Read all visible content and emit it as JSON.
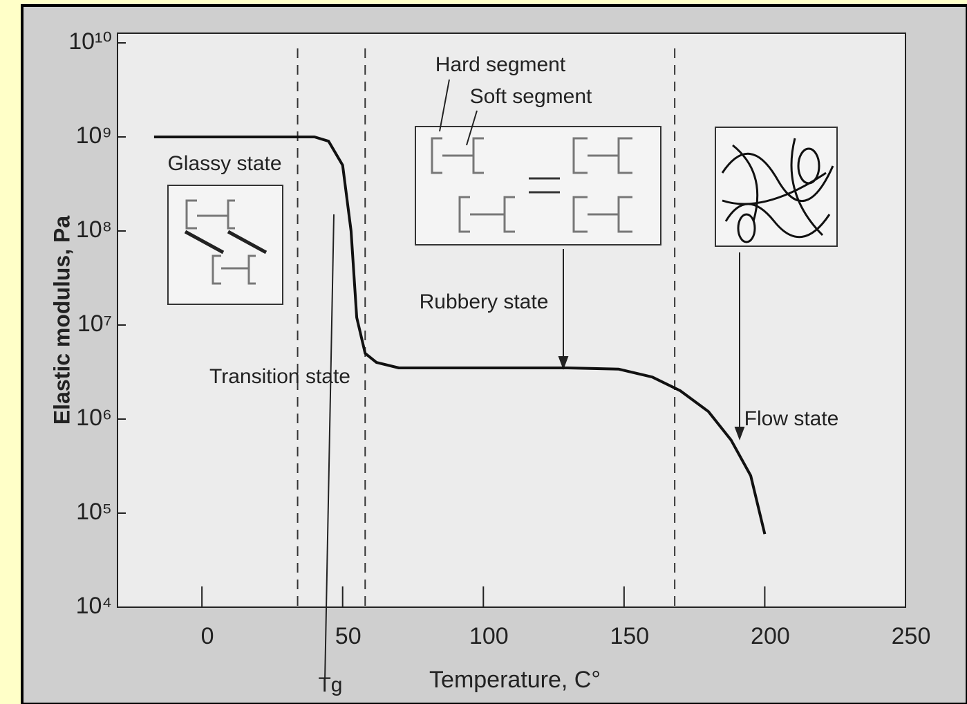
{
  "chart_data": {
    "type": "line",
    "y_label": "Elastic modulus, Pa",
    "x_label": "Temperature, C°",
    "x": [
      -17,
      40,
      45,
      50,
      53,
      55,
      58,
      62,
      70,
      100,
      130,
      148,
      160,
      170,
      180,
      188,
      195,
      200
    ],
    "values": [
      1000000000,
      1000000000,
      900000000,
      500000000,
      100000000,
      12000000,
      5000000,
      4000000,
      3500000,
      3500000,
      3500000,
      3400000,
      2800000,
      2000000,
      1200000,
      600000,
      250000,
      60000
    ],
    "color": "#111111",
    "y_scale": "log",
    "xlim": [
      -30,
      250
    ],
    "ylim": [
      10000,
      10000000000
    ],
    "xticks": [
      0,
      50,
      100,
      150,
      200,
      250
    ],
    "yticks": [
      {
        "value": 10000,
        "label": "10⁴"
      },
      {
        "value": 100000,
        "label": "10⁵"
      },
      {
        "value": 1000000,
        "label": "10⁶"
      },
      {
        "value": 10000000,
        "label": "10⁷"
      },
      {
        "value": 100000000,
        "label": "10⁸"
      },
      {
        "value": 1000000000,
        "label": "10⁹"
      },
      {
        "value": 10000000000,
        "label": "10¹⁰"
      }
    ],
    "region_boundaries": [
      34,
      58,
      168
    ],
    "annotations": [
      "Glassy state",
      "Transition state",
      "Rubbery state",
      "Flow state",
      "Hard segment",
      "Soft segment",
      "Tg"
    ]
  }
}
